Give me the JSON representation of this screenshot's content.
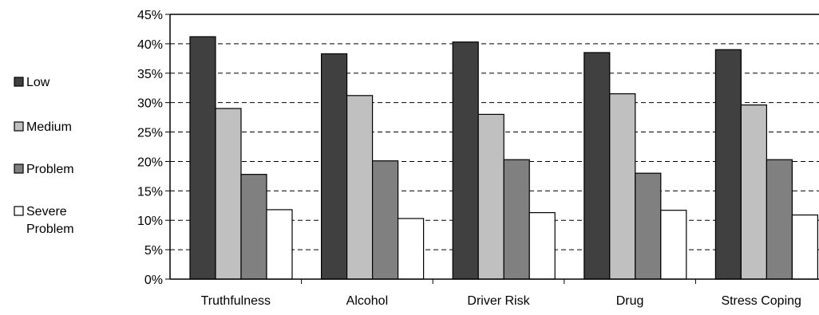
{
  "chart_data": {
    "type": "bar",
    "categories": [
      "Truthfulness",
      "Alcohol",
      "Driver Risk",
      "Drug",
      "Stress Coping"
    ],
    "series": [
      {
        "name": "Low",
        "values": [
          41.2,
          38.3,
          40.3,
          38.5,
          39.0
        ],
        "color": "#404040"
      },
      {
        "name": "Medium",
        "values": [
          29.0,
          31.2,
          28.0,
          31.5,
          29.6
        ],
        "color": "#c0c0c0"
      },
      {
        "name": "Problem",
        "values": [
          17.8,
          20.1,
          20.3,
          18.0,
          20.3
        ],
        "color": "#808080"
      },
      {
        "name": "Severe Problem",
        "values": [
          11.8,
          10.3,
          11.3,
          11.7,
          10.9
        ],
        "color": "#ffffff"
      }
    ],
    "ylim": [
      0,
      45
    ],
    "yticks": [
      "0%",
      "5%",
      "10%",
      "15%",
      "20%",
      "25%",
      "30%",
      "35%",
      "40%",
      "45%"
    ],
    "ytick_values": [
      0,
      5,
      10,
      15,
      20,
      25,
      30,
      35,
      40,
      45
    ],
    "grid": "dashed horizontal",
    "legend_position": "left"
  }
}
